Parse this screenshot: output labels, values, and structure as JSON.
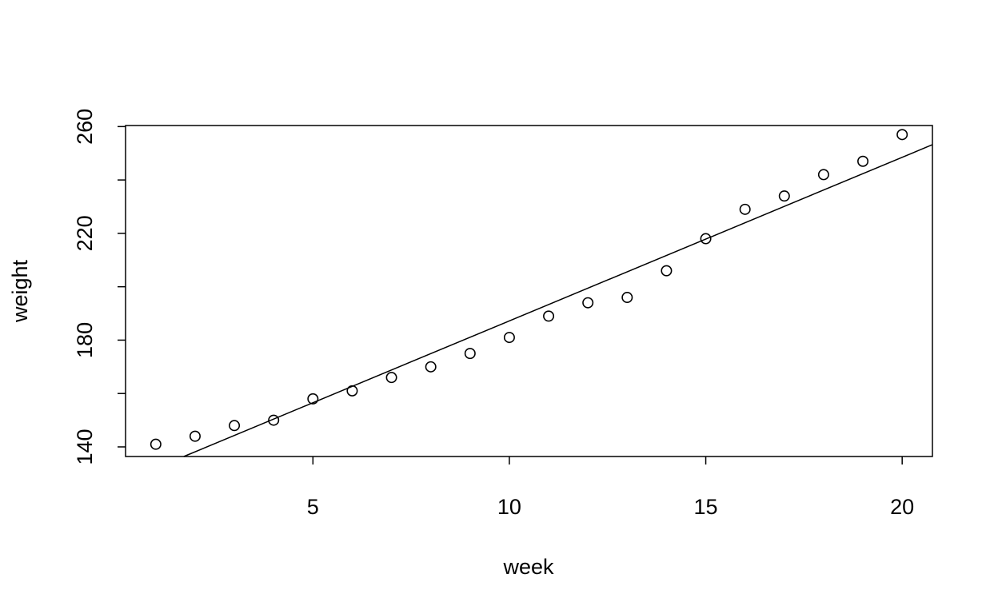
{
  "chart_data": {
    "type": "scatter",
    "title": "",
    "xlabel": "week",
    "ylabel": "weight",
    "xlim": [
      0.23,
      20.77
    ],
    "ylim": [
      136.4,
      260.4
    ],
    "x_ticks": [
      5,
      10,
      15,
      20
    ],
    "x_tick_labels": [
      "5",
      "10",
      "15",
      "20"
    ],
    "y_ticks": [
      140,
      160,
      180,
      200,
      220,
      240,
      260
    ],
    "y_tick_labels": [
      "140",
      "",
      "180",
      "",
      "220",
      "",
      "260"
    ],
    "grid": false,
    "legend": "none",
    "marker": "open-circle",
    "series": [
      {
        "x": [
          1,
          2,
          3,
          4,
          5,
          6,
          7,
          8,
          9,
          10,
          11,
          12,
          13,
          14,
          15,
          16,
          17,
          18,
          19,
          20
        ],
        "y": [
          141,
          144,
          148,
          150,
          158,
          161,
          166,
          170,
          175,
          181,
          189,
          194,
          196,
          206,
          218,
          229,
          234,
          242,
          247,
          257
        ]
      }
    ],
    "fit_line": {
      "intercept": 125.9,
      "slope": 6.13
    },
    "colors": {
      "points": "#000000",
      "line": "#000000",
      "axes": "#000000",
      "background": "#ffffff"
    }
  }
}
